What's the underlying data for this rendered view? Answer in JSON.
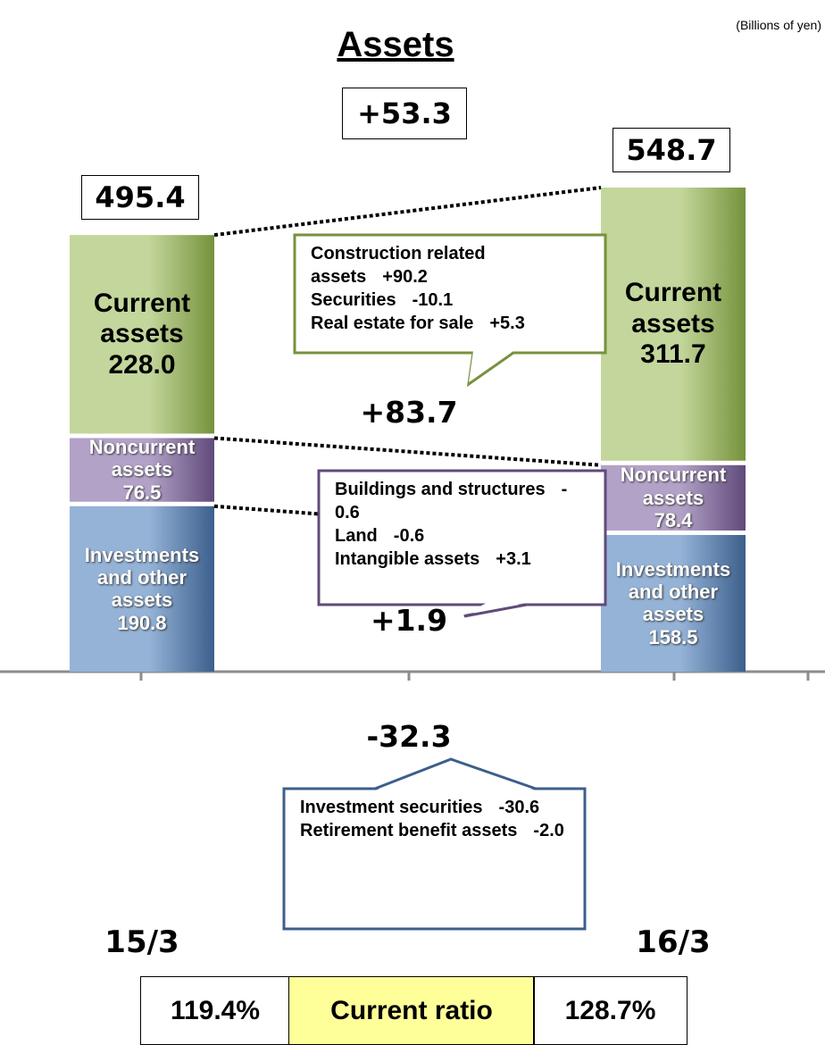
{
  "chart_data": {
    "type": "stacked_bar",
    "title": "Assets",
    "unit_note": "(Billions of yen)",
    "categories": [
      "15/3",
      "16/3"
    ],
    "series": [
      {
        "name": "Investments and other assets",
        "color": "#3c5f8c",
        "light": "#95b3d7",
        "values": [
          190.8,
          158.5
        ],
        "value_labels": [
          "190.8",
          "158.5"
        ]
      },
      {
        "name": "Noncurrent assets",
        "color": "#604a7b",
        "light": "#b3a2c7",
        "values": [
          76.5,
          78.4
        ],
        "value_labels": [
          "76.5",
          "78.4"
        ]
      },
      {
        "name": "Current assets",
        "color": "#76923c",
        "light": "#c3d69b",
        "values": [
          228,
          311.7
        ],
        "value_labels": [
          "228.0",
          "311.7"
        ]
      }
    ],
    "totals": [
      495.4,
      548.7
    ],
    "total_change": "+53.3",
    "series_changes": [
      "-32.3",
      "+1.9",
      "+83.7"
    ],
    "callouts": [
      {
        "color": "#3c5f8c",
        "items": [
          {
            "label": "Investment securities",
            "value": "-30.6"
          },
          {
            "label": "Retirement benefit assets",
            "value": "-2.0"
          }
        ]
      },
      {
        "color": "#604a7b",
        "items": [
          {
            "label": "Buildings and structures",
            "value": "-0.6"
          },
          {
            "label": "Land",
            "value": "-0.6"
          },
          {
            "label": "Intangible assets",
            "value": "+3.1"
          }
        ]
      },
      {
        "color": "#76923c",
        "items": [
          {
            "label": "Construction related assets",
            "value": "+90.2"
          },
          {
            "label": "Securities",
            "value": "-10.1"
          },
          {
            "label": "Real estate for sale",
            "value": "+5.3"
          }
        ]
      }
    ],
    "ratio_table": {
      "left": "119.4%",
      "label": "Current ratio",
      "right": "128.7%"
    }
  }
}
